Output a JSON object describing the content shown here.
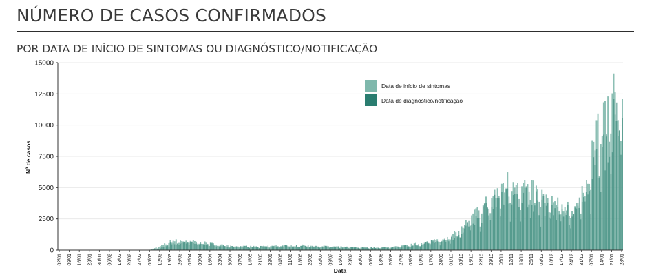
{
  "page": {
    "title": "NÚMERO DE CASOS CONFIRMADOS",
    "subtitle": "POR DATA DE INÍCIO DE SINTOMAS OU DIAGNÓSTICO/NOTIFICAÇÃO"
  },
  "colors": {
    "symptom_onset": "#7fb8ac",
    "diagnosis": "#2a7d70",
    "grid": "#e9e9e9",
    "axis": "#333333"
  },
  "chart_data": {
    "type": "bar",
    "xlabel": "Data",
    "ylabel": "Nº de casos",
    "ylim": [
      0,
      15000
    ],
    "yticks": [
      0,
      2500,
      5000,
      7500,
      10000,
      12500,
      15000
    ],
    "grid": true,
    "legend_position": "top-right",
    "x_start": "02/01/2020",
    "x_end": "28/01/2021",
    "tick_labels": [
      "02/01",
      "09/01",
      "16/01",
      "23/01",
      "30/01",
      "06/02",
      "13/02",
      "20/02",
      "27/02",
      "05/03",
      "12/03",
      "19/03",
      "26/03",
      "02/04",
      "09/04",
      "16/04",
      "23/04",
      "30/04",
      "07/05",
      "14/05",
      "21/05",
      "28/05",
      "04/06",
      "11/06",
      "18/06",
      "25/06",
      "02/07",
      "09/07",
      "16/07",
      "23/07",
      "30/07",
      "06/08",
      "13/08",
      "20/08",
      "27/08",
      "03/09",
      "10/09",
      "17/09",
      "24/09",
      "01/10",
      "08/10",
      "15/10",
      "22/10",
      "29/10",
      "05/11",
      "12/11",
      "19/11",
      "26/11",
      "03/12",
      "10/12",
      "17/12",
      "24/12",
      "31/12",
      "07/01",
      "14/01",
      "21/01",
      "28/01"
    ],
    "weekly_avg_tick_dates": [
      "02/01",
      "09/01",
      "16/01",
      "23/01",
      "30/01",
      "06/02",
      "13/02",
      "20/02",
      "27/02",
      "05/03",
      "12/03",
      "19/03",
      "26/03",
      "02/04",
      "09/04",
      "16/04",
      "23/04",
      "30/04",
      "07/05",
      "14/05",
      "21/05",
      "28/05",
      "04/06",
      "11/06",
      "18/06",
      "25/06",
      "02/07",
      "09/07",
      "16/07",
      "23/07",
      "30/07",
      "06/08",
      "13/08",
      "20/08",
      "27/08",
      "03/09",
      "10/09",
      "17/09",
      "24/09",
      "01/10",
      "08/10",
      "15/10",
      "22/10",
      "29/10",
      "05/11",
      "12/11",
      "19/11",
      "26/11",
      "03/12",
      "10/12",
      "17/12",
      "24/12",
      "31/12",
      "07/01",
      "14/01",
      "21/01",
      "28/01"
    ],
    "series": [
      {
        "name": "Data de início de sintomas",
        "weekly_avg": [
          0,
          0,
          0,
          0,
          0,
          0,
          0,
          0,
          0,
          30,
          300,
          720,
          760,
          700,
          620,
          520,
          420,
          330,
          300,
          300,
          280,
          330,
          350,
          380,
          380,
          350,
          330,
          290,
          260,
          230,
          220,
          200,
          210,
          240,
          320,
          430,
          560,
          720,
          900,
          1100,
          1700,
          2600,
          3400,
          4200,
          5200,
          5600,
          5300,
          4700,
          4300,
          3800,
          3600,
          3400,
          4300,
          8000,
          10200,
          12000,
          12500
        ]
      },
      {
        "name": "Data de diagnóstico/notificação",
        "weekly_avg": [
          0,
          0,
          0,
          0,
          0,
          0,
          0,
          0,
          0,
          10,
          150,
          520,
          640,
          620,
          540,
          470,
          370,
          300,
          280,
          290,
          270,
          310,
          330,
          350,
          360,
          340,
          320,
          280,
          250,
          220,
          210,
          190,
          200,
          230,
          300,
          410,
          520,
          660,
          820,
          1000,
          1500,
          2300,
          3000,
          3800,
          4500,
          4900,
          4600,
          4200,
          3800,
          3400,
          3200,
          3100,
          3700,
          6500,
          8400,
          9800,
          10600
        ]
      }
    ]
  },
  "legend": {
    "items": [
      {
        "label": "Data de início de sintomas",
        "color": "#7fb8ac"
      },
      {
        "label": "Data de diagnóstico/notificação",
        "color": "#2a7d70"
      }
    ]
  }
}
